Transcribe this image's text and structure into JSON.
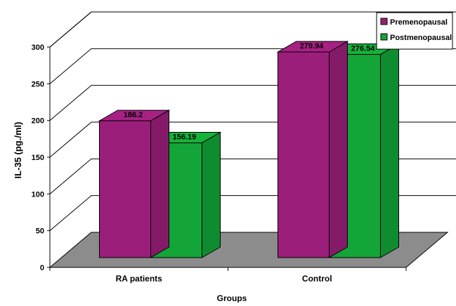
{
  "chart_data": {
    "type": "bar",
    "style": "3d-clustered",
    "title": "",
    "xlabel": "Groups",
    "ylabel": "IL-35 (pg./ml)",
    "ylim": [
      0,
      300
    ],
    "yticks": [
      0,
      50,
      100,
      150,
      200,
      250,
      300
    ],
    "categories": [
      "RA patients",
      "Control"
    ],
    "series": [
      {
        "name": "Premenopausal",
        "color": "#9b1f7a",
        "values": [
          186.2,
          279.94
        ],
        "labels": [
          "186.2",
          "279.94"
        ]
      },
      {
        "name": "Postmenopausal",
        "color": "#13a538",
        "values": [
          156.19,
          276.54
        ],
        "labels": [
          "156.19",
          "276.54"
        ]
      }
    ],
    "grid": true,
    "floor_color": "#8c8c8c",
    "legend": {
      "position": "top-right"
    }
  }
}
